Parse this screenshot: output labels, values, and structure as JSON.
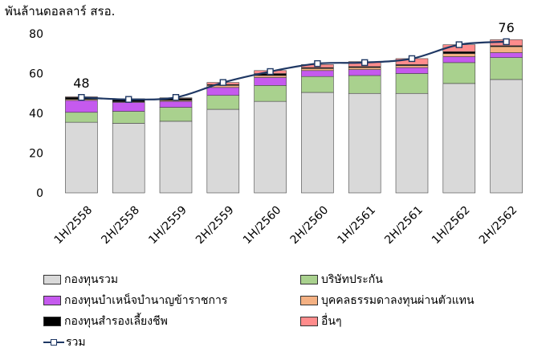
{
  "chart_data": {
    "type": "bar",
    "stacked": true,
    "title": "พันล้านดอลลาร์ สรอ.",
    "categories": [
      "1H/2558",
      "2H/2558",
      "1H/2559",
      "2H/2559",
      "1H/2560",
      "2H/2560",
      "1H/2561",
      "2H/2561",
      "1H/2562",
      "2H/2562"
    ],
    "ylim": [
      0,
      80
    ],
    "yticks": [
      0,
      20,
      40,
      60,
      80
    ],
    "grid": false,
    "series": [
      {
        "name": "กองทุนรวม",
        "color": "#d9d9d9",
        "values": [
          35.5,
          35,
          36,
          42,
          46,
          50.5,
          50,
          50,
          55,
          57
        ]
      },
      {
        "name": "บริษัทประกัน",
        "color": "#a9d18e",
        "values": [
          5,
          6,
          7,
          7,
          8,
          8,
          9,
          10,
          10.5,
          11
        ]
      },
      {
        "name": "กองทุนบำเหน็จบำนาญข้าราชการ",
        "color": "#c55aee",
        "values": [
          6,
          4.5,
          3,
          4,
          4,
          3,
          3,
          3,
          3,
          2.5
        ]
      },
      {
        "name": "บุคคลธรรมดาลงทุนผ่านตัวแทน",
        "color": "#f4b183",
        "values": [
          0.5,
          0.3,
          0.5,
          1,
          1,
          1,
          1,
          1,
          1.5,
          3
        ]
      },
      {
        "name": "กองทุนสำรองเลี้ยงชีพ",
        "color": "#000000",
        "values": [
          1,
          1,
          1,
          0.5,
          1,
          0.5,
          0.5,
          0.5,
          1,
          0.5
        ]
      },
      {
        "name": "อื่นๆ",
        "color": "#ff8c8c",
        "values": [
          0.3,
          0.5,
          0.3,
          1,
          1.5,
          1.5,
          2.5,
          3,
          3.5,
          3
        ]
      }
    ],
    "line": {
      "name": "รวม",
      "color": "#1f3864",
      "values": [
        48,
        47,
        48,
        55.5,
        61,
        65,
        65.5,
        67.5,
        74.5,
        76
      ]
    },
    "data_labels": [
      {
        "index": 0,
        "text": "48"
      },
      {
        "index": 9,
        "text": "76"
      }
    ],
    "legend_position": "bottom"
  }
}
